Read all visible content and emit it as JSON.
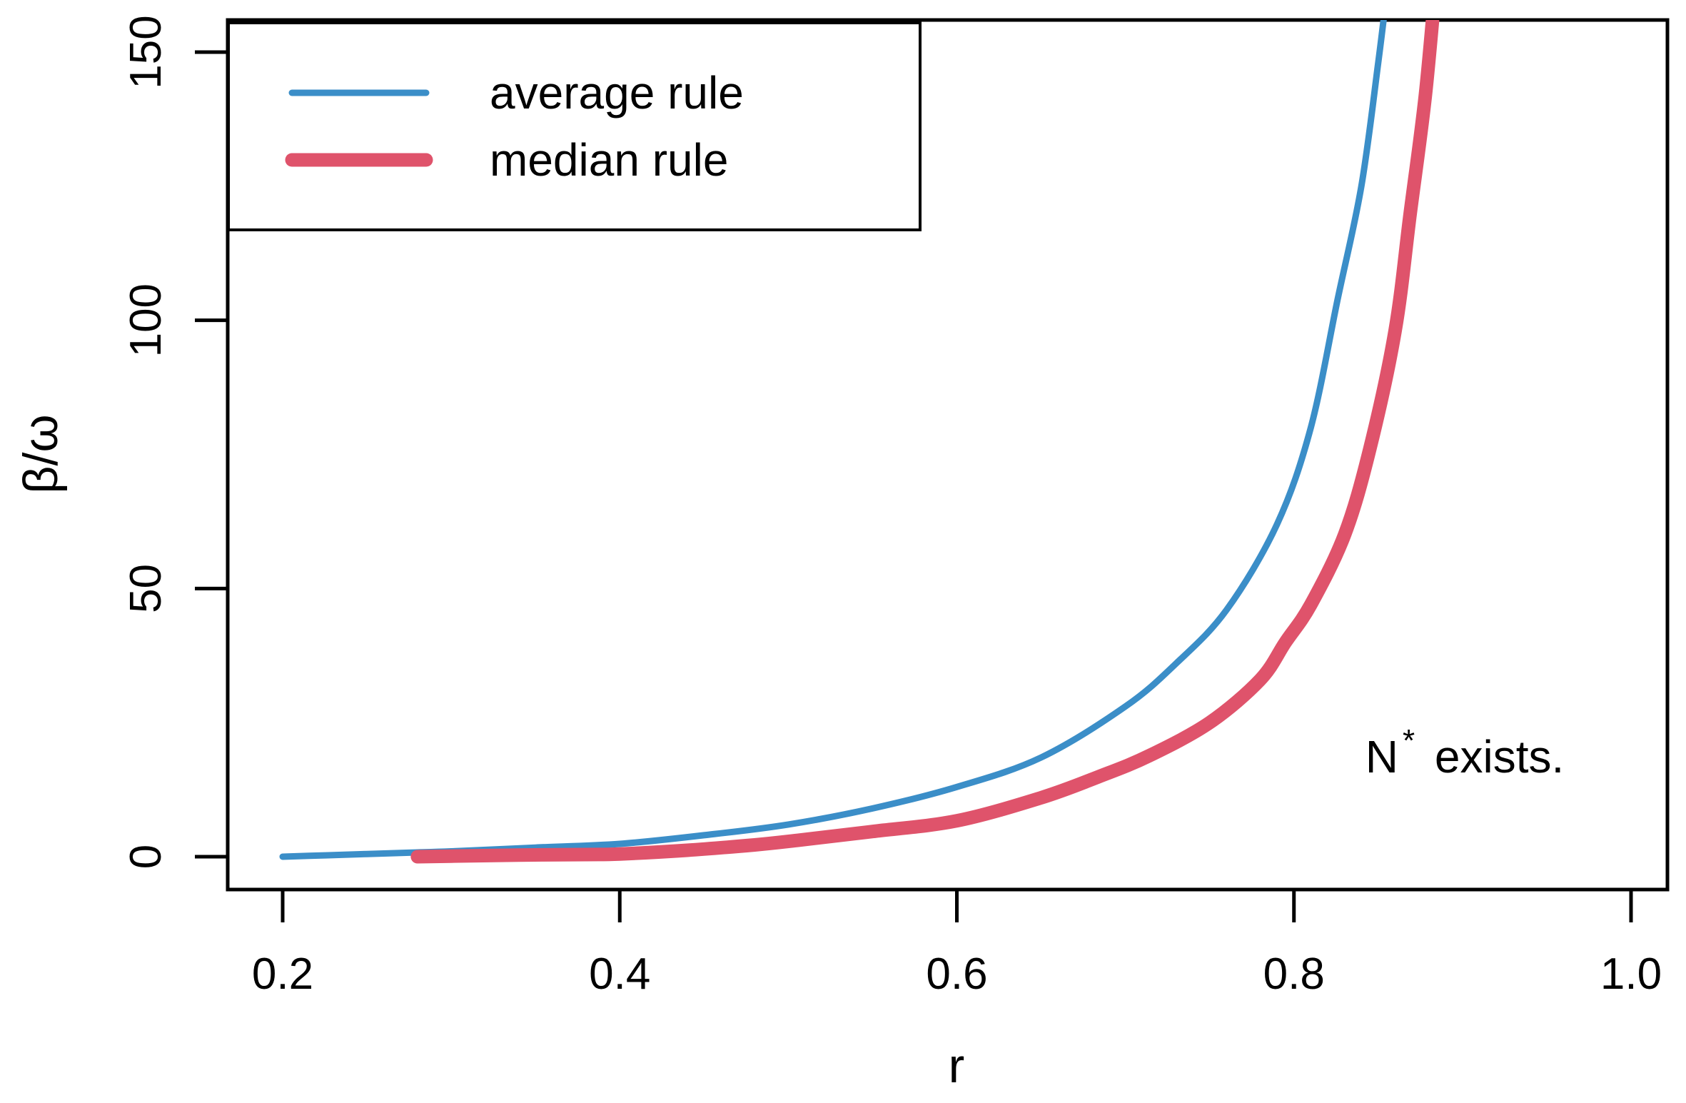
{
  "figure": {
    "background": "#ffffff",
    "frame_color": "#000000"
  },
  "chart_data": {
    "type": "line",
    "title": "",
    "xlabel": "r",
    "ylabel": "β/ω",
    "xlim": [
      0.2,
      1.0
    ],
    "ylim": [
      0,
      150
    ],
    "x_ticks": [
      0.2,
      0.4,
      0.6,
      0.8,
      1.0
    ],
    "x_tick_labels": [
      "0.2",
      "0.4",
      "0.6",
      "0.8",
      "1.0"
    ],
    "y_ticks": [
      0,
      50,
      100,
      150
    ],
    "y_tick_labels": [
      "0",
      "50",
      "100",
      "150"
    ],
    "grid": false,
    "legend_position": "top-left",
    "series": [
      {
        "name": "average rule",
        "color": "#3b8ec8",
        "stroke_width": 9,
        "points": [
          [
            0.2,
            0.0
          ],
          [
            0.225,
            0.25
          ],
          [
            0.25,
            0.5
          ],
          [
            0.275,
            0.75
          ],
          [
            0.3,
            1.0
          ],
          [
            0.35,
            1.7
          ],
          [
            0.4,
            2.4
          ],
          [
            0.45,
            4.0
          ],
          [
            0.5,
            6.0
          ],
          [
            0.55,
            9.0
          ],
          [
            0.6,
            13.0
          ],
          [
            0.65,
            18.5
          ],
          [
            0.7,
            28.0
          ],
          [
            0.73,
            36.0
          ],
          [
            0.76,
            46.0
          ],
          [
            0.79,
            62.0
          ],
          [
            0.81,
            80.0
          ],
          [
            0.826,
            104.0
          ],
          [
            0.84,
            125.0
          ],
          [
            0.85,
            148.0
          ],
          [
            0.857,
            166.0
          ]
        ]
      },
      {
        "name": "median rule",
        "color": "#df536b",
        "stroke_width": 19,
        "points": [
          [
            0.28,
            0.0
          ],
          [
            0.3,
            0.1
          ],
          [
            0.34,
            0.3
          ],
          [
            0.38,
            0.4
          ],
          [
            0.4,
            0.5
          ],
          [
            0.44,
            1.2
          ],
          [
            0.48,
            2.2
          ],
          [
            0.507,
            3.1
          ],
          [
            0.55,
            4.7
          ],
          [
            0.6,
            6.7
          ],
          [
            0.65,
            11.0
          ],
          [
            0.684,
            14.9
          ],
          [
            0.714,
            18.8
          ],
          [
            0.75,
            25.0
          ],
          [
            0.78,
            33.0
          ],
          [
            0.795,
            40.0
          ],
          [
            0.81,
            47.0
          ],
          [
            0.83,
            60.0
          ],
          [
            0.845,
            76.0
          ],
          [
            0.86,
            98.0
          ],
          [
            0.869,
            120.0
          ],
          [
            0.878,
            142.0
          ],
          [
            0.885,
            166.0
          ]
        ]
      }
    ],
    "annotations": [
      {
        "text": "N* exists.",
        "base": "N",
        "sup": "*",
        "rest": " exists.",
        "x": 0.9,
        "y": 19
      }
    ]
  }
}
